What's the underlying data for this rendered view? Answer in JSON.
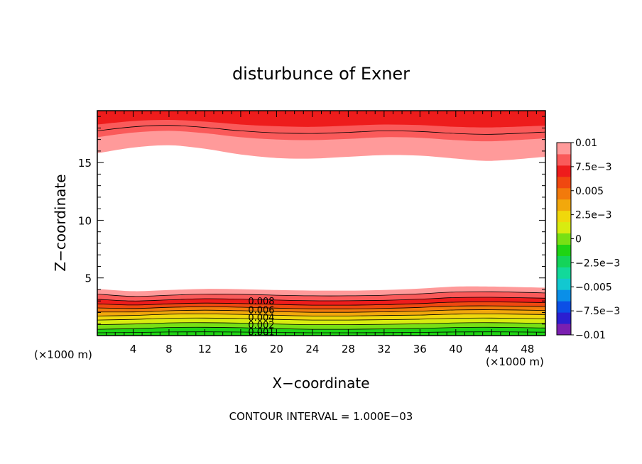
{
  "chart_data": {
    "type": "contour",
    "title": "disturbunce of Exner",
    "xlabel": "X−coordinate",
    "ylabel": "Z−coordinate",
    "x_unit_left": "(×1000 m)",
    "x_unit_right": "(×1000 m)",
    "xlim": [
      0,
      50
    ],
    "ylim": [
      0,
      19.5
    ],
    "x_ticks": [
      4,
      8,
      12,
      16,
      20,
      24,
      28,
      32,
      36,
      40,
      44,
      48
    ],
    "x_tick_labels": [
      "4",
      "8",
      "12",
      "16",
      "20",
      "24",
      "28",
      "32",
      "36",
      "40",
      "44",
      "48"
    ],
    "y_ticks": [
      5,
      10,
      15
    ],
    "y_tick_labels": [
      "5",
      "10",
      "15"
    ],
    "contour_interval_text": "CONTOUR INTERVAL = 1.000E−03",
    "contour_labels": [
      "0.008",
      "0.006",
      "0.004",
      "0.002",
      "0.001"
    ],
    "colorbar": {
      "min": -0.01,
      "max": 0.01,
      "tick_values": [
        0.01,
        0.0075,
        0.005,
        0.0025,
        0,
        -0.0025,
        -0.005,
        -0.0075,
        -0.01
      ],
      "tick_labels": [
        "0.01",
        "7.5e−3",
        "0.005",
        "2.5e−3",
        "0",
        "−2.5e−3",
        "−0.005",
        "−7.5e−3",
        "−0.01"
      ],
      "colors": [
        "#7a1fb0",
        "#2b1fd1",
        "#0c4fe6",
        "#0a8fe8",
        "#12c8d0",
        "#12d99a",
        "#14d45a",
        "#1fd414",
        "#78e014",
        "#d8ec10",
        "#f0d80c",
        "#f2a80c",
        "#f27a0c",
        "#f04810",
        "#ee1c1c",
        "#fa5a5a",
        "#ff9a9a"
      ]
    },
    "lower_bands": [
      {
        "value": 0.0005,
        "color": "#1fd414",
        "top": [
          0.55,
          0.6,
          0.7,
          0.72,
          0.68,
          0.6,
          0.55,
          0.55,
          0.58,
          0.62,
          0.7,
          0.72,
          0.66
        ]
      },
      {
        "value": 0.0015,
        "color": "#78e014",
        "top": [
          0.95,
          1.0,
          1.1,
          1.12,
          1.08,
          1.0,
          0.95,
          0.95,
          0.98,
          1.02,
          1.1,
          1.12,
          1.06
        ]
      },
      {
        "value": 0.0025,
        "color": "#d8ec10",
        "top": [
          1.35,
          1.4,
          1.5,
          1.52,
          1.48,
          1.4,
          1.35,
          1.35,
          1.38,
          1.42,
          1.5,
          1.52,
          1.46
        ]
      },
      {
        "value": 0.0035,
        "color": "#f0d80c",
        "top": [
          1.7,
          1.75,
          1.85,
          1.88,
          1.84,
          1.76,
          1.7,
          1.7,
          1.74,
          1.78,
          1.86,
          1.88,
          1.82
        ]
      },
      {
        "value": 0.0045,
        "color": "#f2a80c",
        "top": [
          2.05,
          2.05,
          2.15,
          2.2,
          2.16,
          2.08,
          2.02,
          2.02,
          2.06,
          2.12,
          2.22,
          2.24,
          2.18
        ]
      },
      {
        "value": 0.0055,
        "color": "#f27a0c",
        "top": [
          2.4,
          2.35,
          2.45,
          2.5,
          2.46,
          2.38,
          2.32,
          2.32,
          2.36,
          2.44,
          2.56,
          2.58,
          2.52
        ]
      },
      {
        "value": 0.0065,
        "color": "#f04810",
        "top": [
          2.75,
          2.65,
          2.75,
          2.82,
          2.78,
          2.7,
          2.64,
          2.64,
          2.68,
          2.78,
          2.9,
          2.92,
          2.86
        ]
      },
      {
        "value": 0.0075,
        "color": "#ee1c1c",
        "top": [
          3.15,
          3.0,
          3.1,
          3.2,
          3.16,
          3.08,
          3.02,
          3.02,
          3.06,
          3.16,
          3.3,
          3.32,
          3.24
        ]
      },
      {
        "value": 0.0085,
        "color": "#fa5a5a",
        "top": [
          3.6,
          3.4,
          3.5,
          3.6,
          3.58,
          3.5,
          3.45,
          3.45,
          3.5,
          3.62,
          3.78,
          3.8,
          3.7
        ]
      },
      {
        "value": 0.0095,
        "color": "#ff9a9a",
        "top": [
          4.05,
          3.85,
          3.95,
          4.05,
          4.02,
          3.95,
          3.9,
          3.9,
          3.95,
          4.08,
          4.25,
          4.25,
          4.15
        ]
      }
    ],
    "upper_bands": [
      {
        "value": 0.0095,
        "color": "#ff9a9a",
        "bottom": [
          15.8,
          16.3,
          16.5,
          16.2,
          15.7,
          15.4,
          15.35,
          15.5,
          15.65,
          15.6,
          15.35,
          15.15,
          15.5
        ]
      },
      {
        "value": 0.0085,
        "color": "#fa5a5a",
        "bottom": [
          17.2,
          17.6,
          17.75,
          17.55,
          17.2,
          17.0,
          16.95,
          17.05,
          17.2,
          17.15,
          16.95,
          16.85,
          17.1
        ]
      },
      {
        "value": 0.0075,
        "color": "#ee1c1c",
        "bottom": [
          18.3,
          18.6,
          18.7,
          18.55,
          18.3,
          18.15,
          18.1,
          18.2,
          18.3,
          18.25,
          18.1,
          18.05,
          18.2
        ]
      }
    ],
    "x_samples": [
      0,
      4,
      8,
      12,
      16,
      20,
      24,
      28,
      32,
      36,
      40,
      44,
      50
    ]
  }
}
